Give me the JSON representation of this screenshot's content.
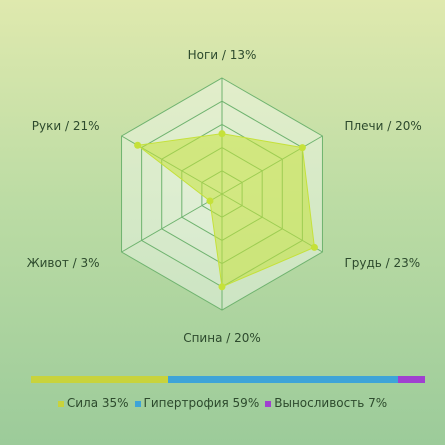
{
  "chart_data": [
    {
      "type": "radar",
      "axes": [
        {
          "label": "Ноги / 13%",
          "value": 13
        },
        {
          "label": "Плечи / 20%",
          "value": 20
        },
        {
          "label": "Грудь / 23%",
          "value": 23
        },
        {
          "label": "Спина / 20%",
          "value": 20
        },
        {
          "label": "Живот / 3%",
          "value": 3
        },
        {
          "label": "Руки / 21%",
          "value": 21
        }
      ],
      "range": [
        0,
        25
      ],
      "rings": 5,
      "fill_color": "#c5e13a",
      "point_color": "#c5e13a",
      "grid_color": "#6fb36f"
    },
    {
      "type": "bar",
      "stacked": true,
      "orientation": "horizontal",
      "series": [
        {
          "name": "Сила 35%",
          "value": 35,
          "color": "#c8d33c"
        },
        {
          "name": "Гипертрофия 59%",
          "value": 59,
          "color": "#3ea4d8"
        },
        {
          "name": "Выносливость 7%",
          "value": 7,
          "color": "#a040d0"
        }
      ]
    }
  ]
}
